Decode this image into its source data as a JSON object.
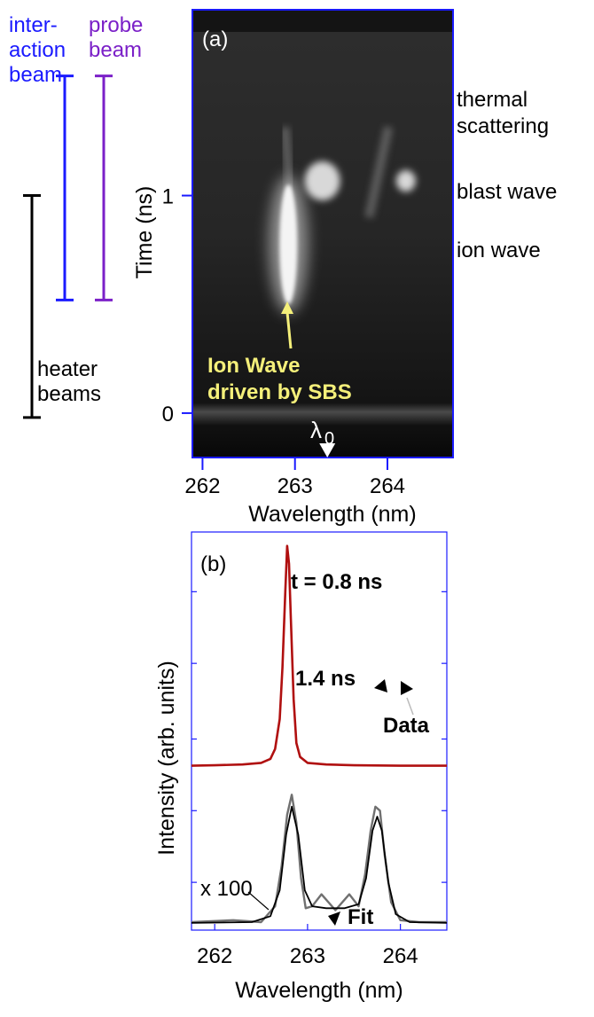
{
  "colors": {
    "interaction_beam": "#1a1aff",
    "probe_beam": "#7b20c8",
    "heater_beams": "#000000",
    "panel_frame": "#1a1aff",
    "annotation_yellow": "#f5f07a",
    "data_red": "#b01010",
    "data_gray": "#707070",
    "fit_black": "#000000"
  },
  "left_legend": {
    "interaction_label": [
      "inter-",
      "action",
      "beam"
    ],
    "probe_label": [
      "probe",
      "beam"
    ],
    "heater_label": [
      "heater",
      "beams"
    ],
    "interaction_span_ns": [
      0.52,
      1.55
    ],
    "probe_span_ns": [
      0.52,
      1.55
    ],
    "heater_span_ns": [
      -0.02,
      1.0
    ]
  },
  "panel_a": {
    "label": "(a)",
    "ylabel": "Time (ns)",
    "xlabel": "Wavelength (nm)",
    "y_ticks": [
      "0",
      "1"
    ],
    "x_ticks": [
      "262",
      "263",
      "264"
    ],
    "lambda_marker": "λ",
    "lambda_subscript": "0",
    "lambda0_nm": 263.35,
    "annotation_line1": "Ion Wave",
    "annotation_line2": "driven by SBS",
    "right_labels": {
      "thermal1": "thermal",
      "thermal2": "scattering",
      "blast": "blast wave",
      "ion": "ion wave"
    }
  },
  "panel_b": {
    "label": "(b)",
    "title": "t = 0.8 ns",
    "ylabel": "Intensity (arb. units)",
    "xlabel": "Wavelength (nm)",
    "x_ticks": [
      "262",
      "263",
      "264"
    ],
    "time2": "1.4 ns",
    "data_label": "Data",
    "fit_label": "Fit",
    "scale_label": "x 100"
  },
  "chart_data": [
    {
      "type": "heatmap",
      "description_source": "streaked Thomson scattering spectrum panel (a)",
      "xlabel": "Wavelength (nm)",
      "ylabel": "Time (ns)",
      "xlim": [
        261.9,
        264.7
      ],
      "ylim": [
        -0.2,
        1.85
      ],
      "x_ticks": [
        262,
        263,
        264
      ],
      "y_ticks": [
        0,
        1
      ],
      "features": [
        {
          "name": "ion wave",
          "x_nm": 262.9,
          "t_start_ns": 0.5,
          "t_end_ns": 1.05
        },
        {
          "name": "blast wave",
          "x_nm": 263.2,
          "t_ns": 1.1
        },
        {
          "name": "blast wave",
          "x_nm": 264.2,
          "t_ns": 1.1
        },
        {
          "name": "thermal scattering",
          "x_nm": 262.95,
          "t_start_ns": 1.0,
          "t_end_ns": 1.6
        },
        {
          "name": "thermal scattering",
          "x_nm": 263.8,
          "t_start_ns": 0.9,
          "t_end_ns": 1.6
        }
      ]
    },
    {
      "type": "line",
      "xlabel": "Wavelength (nm)",
      "ylabel": "Intensity (arb. units)",
      "xlim": [
        261.75,
        264.5
      ],
      "ylim": [
        0,
        1.0
      ],
      "x_ticks": [
        262,
        263,
        264
      ],
      "series": [
        {
          "name": "t = 0.8 ns",
          "x": [
            261.75,
            262.0,
            262.3,
            262.5,
            262.6,
            262.65,
            262.7,
            262.73,
            262.76,
            262.78,
            262.8,
            262.82,
            262.85,
            262.88,
            262.92,
            263.0,
            263.2,
            263.5,
            264.0,
            264.5
          ],
          "y": [
            0.413,
            0.414,
            0.416,
            0.42,
            0.43,
            0.455,
            0.53,
            0.66,
            0.85,
            0.965,
            0.92,
            0.78,
            0.58,
            0.47,
            0.435,
            0.42,
            0.416,
            0.414,
            0.413,
            0.413
          ]
        },
        {
          "name": "1.4 ns Data",
          "x": [
            261.75,
            262.2,
            262.5,
            262.65,
            262.72,
            262.78,
            262.83,
            262.88,
            262.93,
            262.98,
            263.05,
            263.15,
            263.3,
            263.45,
            263.55,
            263.62,
            263.68,
            263.73,
            263.78,
            263.83,
            263.9,
            264.0,
            264.2,
            264.5
          ],
          "y": [
            0.02,
            0.025,
            0.02,
            0.06,
            0.16,
            0.29,
            0.34,
            0.27,
            0.13,
            0.055,
            0.06,
            0.09,
            0.05,
            0.09,
            0.06,
            0.14,
            0.25,
            0.31,
            0.3,
            0.19,
            0.07,
            0.025,
            0.02,
            0.02
          ]
        },
        {
          "name": "1.4 ns Fit",
          "x": [
            261.75,
            262.4,
            262.6,
            262.7,
            262.77,
            262.83,
            262.9,
            262.97,
            263.05,
            263.2,
            263.4,
            263.55,
            263.63,
            263.7,
            263.75,
            263.8,
            263.87,
            263.95,
            264.1,
            264.5
          ],
          "y": [
            0.018,
            0.02,
            0.035,
            0.1,
            0.24,
            0.31,
            0.24,
            0.1,
            0.06,
            0.055,
            0.055,
            0.065,
            0.13,
            0.25,
            0.285,
            0.25,
            0.12,
            0.04,
            0.02,
            0.018
          ]
        }
      ]
    }
  ]
}
